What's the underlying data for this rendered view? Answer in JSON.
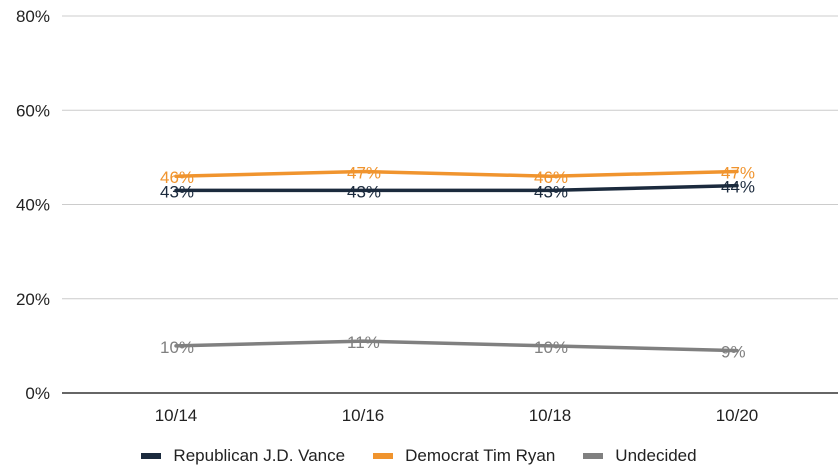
{
  "chart_data": {
    "type": "line",
    "categories": [
      "10/14",
      "10/16",
      "10/18",
      "10/20"
    ],
    "ylim": [
      0,
      80
    ],
    "yticks": [
      "0%",
      "20%",
      "40%",
      "60%",
      "80%"
    ],
    "grid": true,
    "legend_position": "bottom",
    "series": [
      {
        "name": "Republican J.D. Vance",
        "color": "#1b2a3d",
        "values": [
          43,
          43,
          43,
          44
        ],
        "labels": [
          "43%",
          "43%",
          "43%",
          "44%"
        ]
      },
      {
        "name": "Democrat Tim Ryan",
        "color": "#f0942e",
        "values": [
          46,
          47,
          46,
          47
        ],
        "labels": [
          "46%",
          "47%",
          "46%",
          "47%"
        ]
      },
      {
        "name": "Undecided",
        "color": "#808080",
        "values": [
          10,
          11,
          10,
          9
        ],
        "labels": [
          "10%",
          "11%",
          "10%",
          "9%"
        ]
      }
    ]
  }
}
